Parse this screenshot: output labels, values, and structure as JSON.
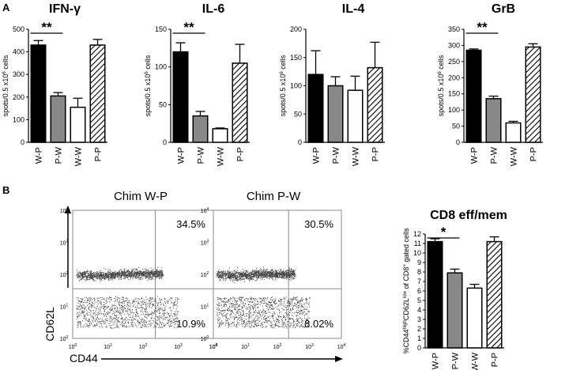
{
  "panel_labels": {
    "a": "A",
    "b": "B"
  },
  "chart_data": [
    {
      "type": "bar",
      "title": "IFN-γ",
      "categories": [
        "W-P",
        "P-W",
        "W-W",
        "P-P"
      ],
      "values": [
        430,
        205,
        155,
        430
      ],
      "errors": [
        20,
        15,
        40,
        25
      ],
      "ylim": [
        0,
        500
      ],
      "yticks": [
        0,
        100,
        200,
        300,
        400,
        500
      ],
      "ylabel_main": "spots/0.5 x10",
      "ylabel_sup": "6",
      "ylabel_tail": " cells",
      "significance": {
        "label": "**",
        "from": 0,
        "to": 1
      }
    },
    {
      "type": "bar",
      "title": "IL-6",
      "categories": [
        "W-P",
        "P-W",
        "W-W",
        "P-P"
      ],
      "values": [
        120,
        35,
        18,
        105
      ],
      "errors": [
        12,
        6,
        1,
        25
      ],
      "ylim": [
        0,
        150
      ],
      "yticks": [
        0,
        50,
        100,
        150
      ],
      "ylabel_main": "spots/0.5 x10",
      "ylabel_sup": "6",
      "ylabel_tail": " cells",
      "significance": {
        "label": "**",
        "from": 0,
        "to": 1
      }
    },
    {
      "type": "bar",
      "title": "IL-4",
      "categories": [
        "W-P",
        "P-W",
        "W-W",
        "P-P"
      ],
      "values": [
        120,
        100,
        92,
        132
      ],
      "errors": [
        42,
        16,
        25,
        45
      ],
      "ylim": [
        0,
        200
      ],
      "yticks": [
        0,
        50,
        100,
        150,
        200
      ],
      "ylabel_main": "spots/0.5 x10",
      "ylabel_sup": "6",
      "ylabel_tail": " cells",
      "significance": null
    },
    {
      "type": "bar",
      "title": "GrB",
      "categories": [
        "W-P",
        "P-W",
        "W-W",
        "P-P"
      ],
      "values": [
        285,
        135,
        60,
        295
      ],
      "errors": [
        4,
        8,
        5,
        10
      ],
      "ylim": [
        0,
        350
      ],
      "yticks": [
        0,
        50,
        100,
        150,
        200,
        250,
        300,
        350
      ],
      "ylabel_main": "spots/0.5 x10",
      "ylabel_sup": "6",
      "ylabel_tail": " cells",
      "significance": {
        "label": "**",
        "from": 0,
        "to": 1
      }
    },
    {
      "type": "bar",
      "title": "CD8 eff/mem",
      "categories": [
        "W-P",
        "P-W",
        "W-W",
        "P-P"
      ],
      "values": [
        11.2,
        7.9,
        6.3,
        11.2
      ],
      "errors": [
        0.3,
        0.4,
        0.4,
        0.5
      ],
      "ylim": [
        0,
        12
      ],
      "yticks": [
        0,
        1,
        2,
        3,
        4,
        5,
        6,
        7,
        8,
        9,
        10,
        11,
        12
      ],
      "ylabel_parts": [
        "%CD44",
        "high",
        "CD62L",
        "low",
        " of CD8",
        "+",
        " gated cells"
      ],
      "significance": {
        "label": "*",
        "from": 0,
        "to": 1
      }
    },
    {
      "type": "scatter",
      "title": "Chim W-P",
      "quadrant_upper_right": "34.5%",
      "quadrant_lower_right": "10.9%",
      "xlabel": "CD44",
      "ylabel": "CD62L",
      "x_range_log10": [
        0,
        4
      ],
      "y_range_log10": [
        0,
        4
      ],
      "tick_powers": [
        "0",
        "1",
        "2",
        "3",
        "4"
      ],
      "tick_base": "10"
    },
    {
      "type": "scatter",
      "title": "Chim P-W",
      "quadrant_upper_right": "30.5%",
      "quadrant_lower_right": "8.02%",
      "x_range_log10": [
        0,
        4
      ],
      "y_range_log10": [
        0,
        4
      ],
      "tick_powers": [
        "0",
        "1",
        "2",
        "3",
        "4"
      ],
      "tick_base": "10"
    }
  ]
}
